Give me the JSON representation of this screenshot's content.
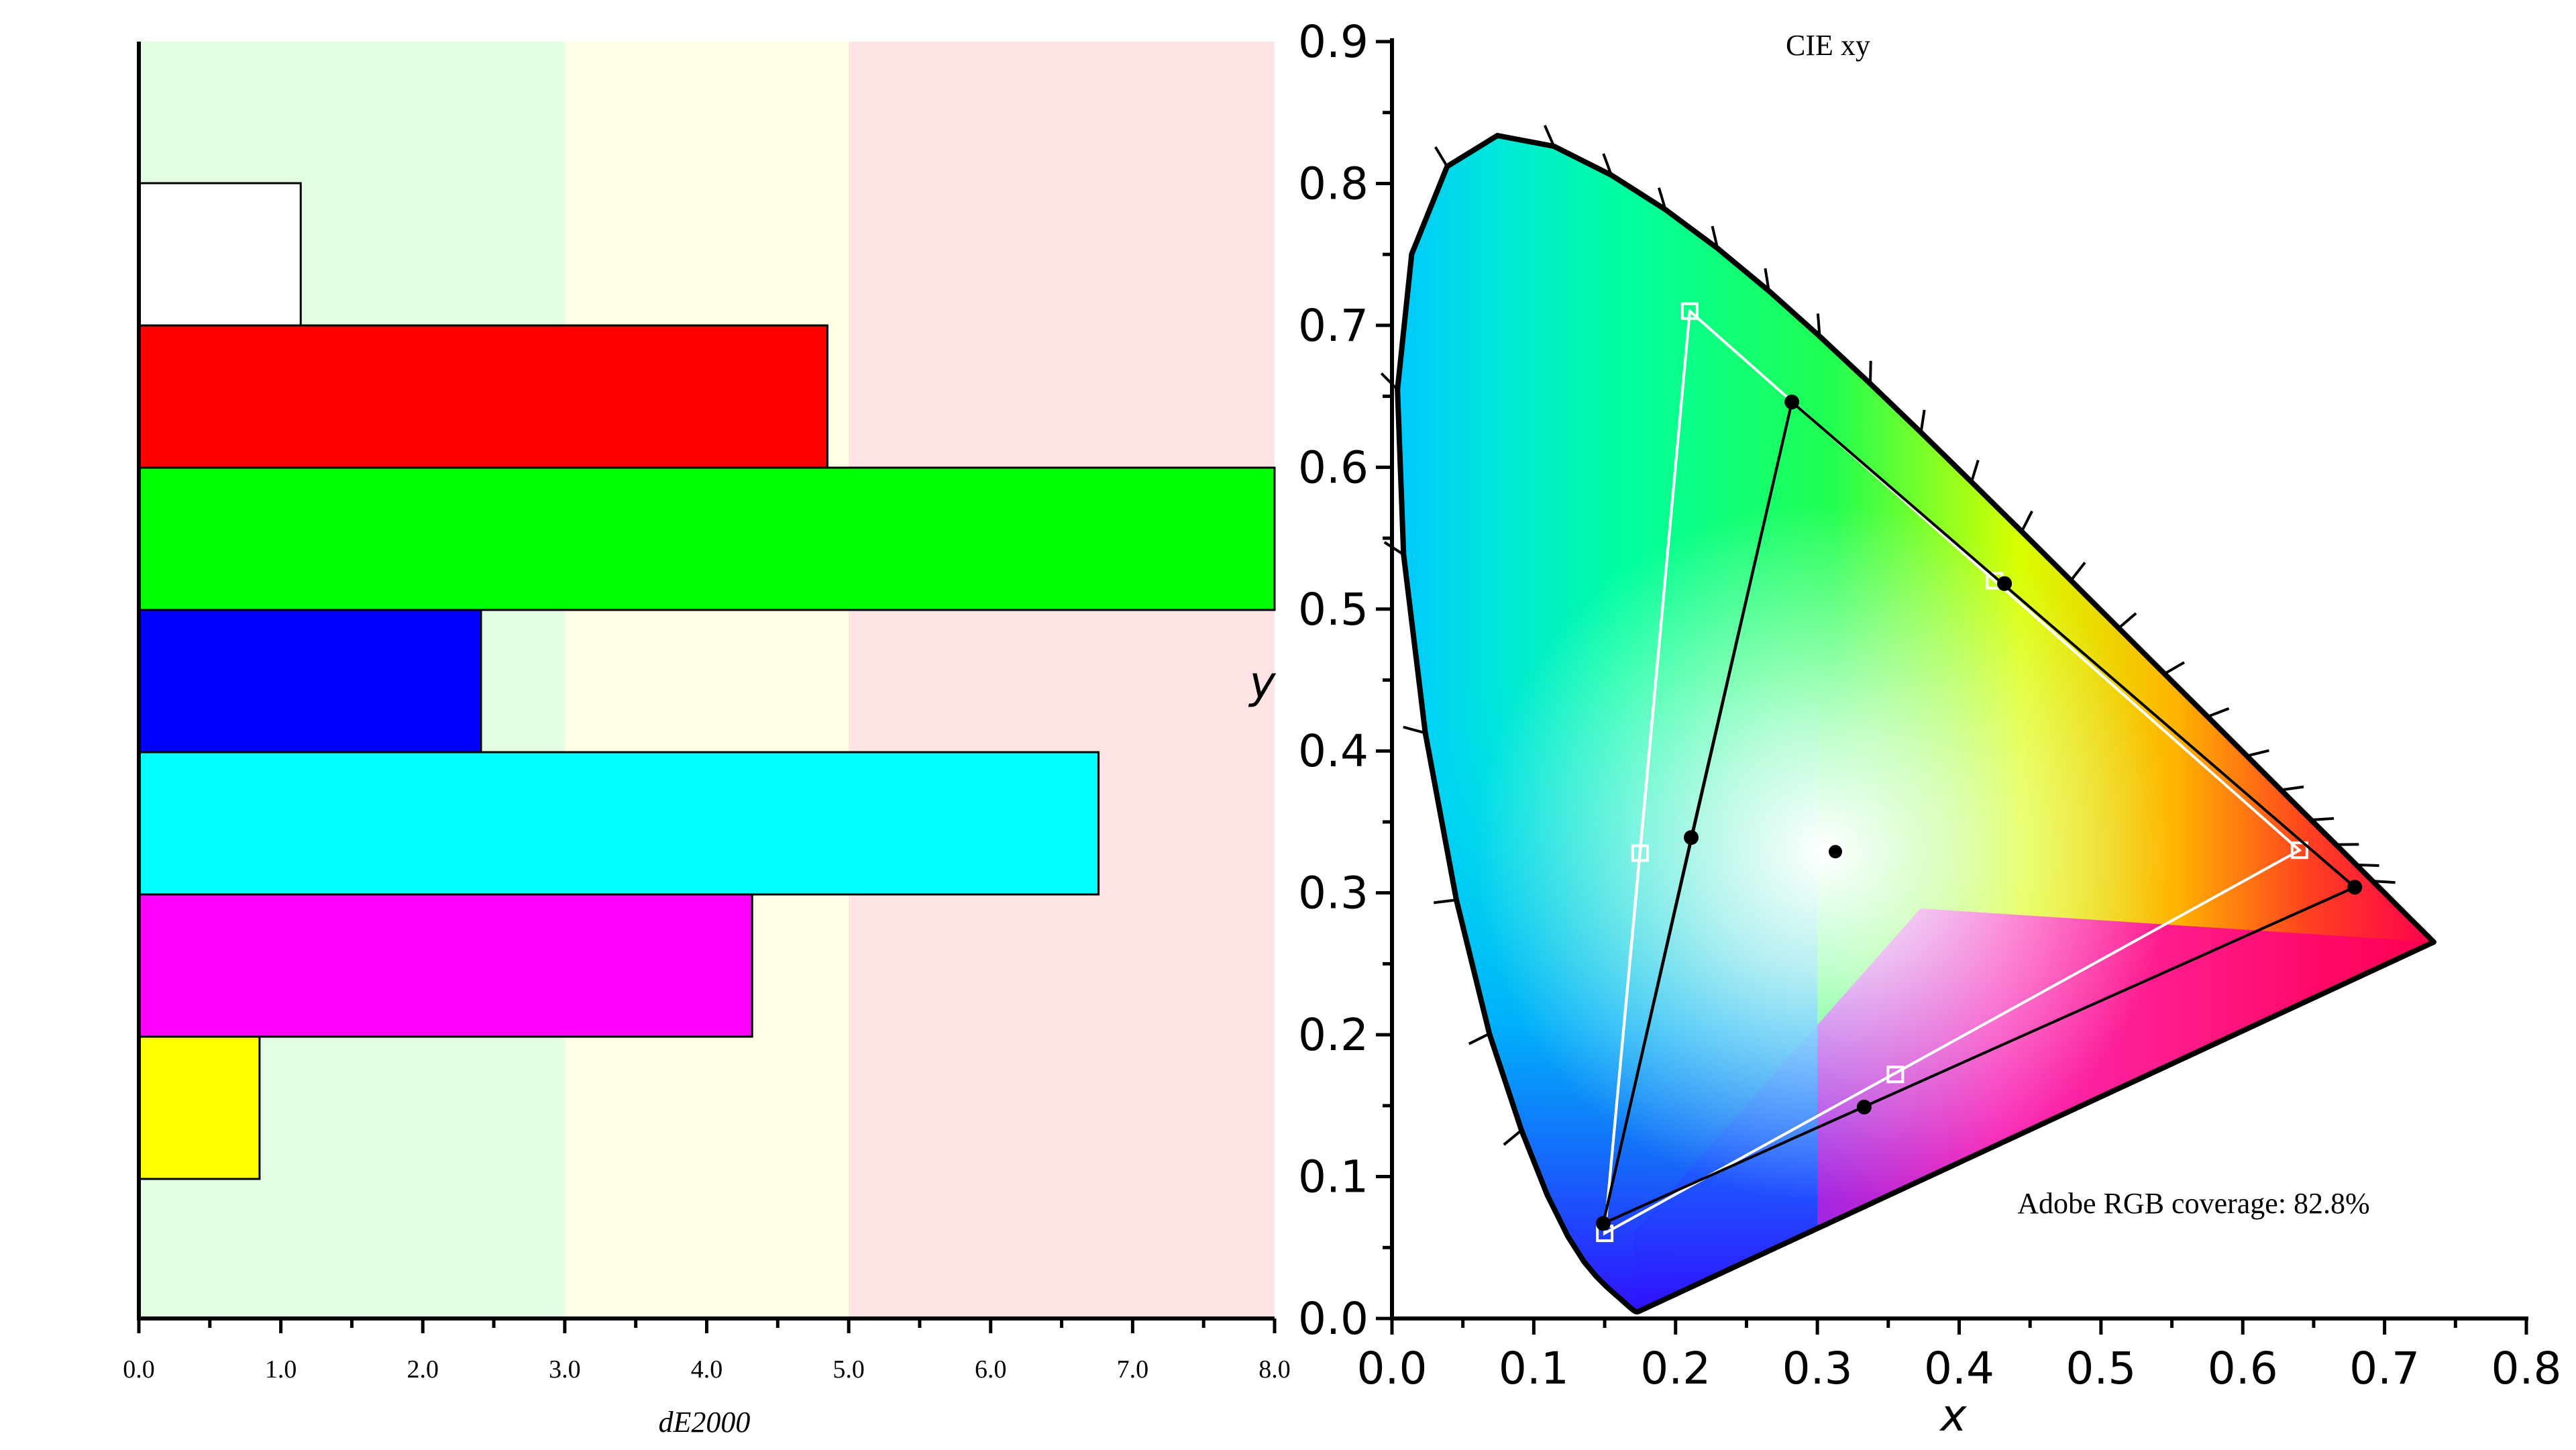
{
  "chart_data": [
    {
      "type": "bar",
      "orientation": "horizontal",
      "categories": [
        "White",
        "Red",
        "Green",
        "Blue",
        "Cyan",
        "Magenta",
        "Yellow"
      ],
      "values": [
        1.14,
        4.85,
        8.0,
        2.41,
        6.76,
        4.32,
        0.85
      ],
      "bar_colors": [
        "#ffffff",
        "#ff0000",
        "#00ff00",
        "#0000ff",
        "#00ffff",
        "#ff00ff",
        "#ffff00"
      ],
      "xlabel": "dE2000",
      "xlim": [
        0,
        8
      ],
      "x_ticks": [
        0,
        1,
        2,
        3,
        4,
        5,
        6,
        7,
        8
      ],
      "x_tick_labels": [
        "0.0",
        "1.0",
        "2.0",
        "3.0",
        "4.0",
        "5.0",
        "6.0",
        "7.0",
        "8.0"
      ],
      "zones": [
        {
          "from": 0,
          "to": 3,
          "color": "#e3fde3"
        },
        {
          "from": 3,
          "to": 5,
          "color": "#fdfee3"
        },
        {
          "from": 5,
          "to": 8,
          "color": "#fde3e3"
        }
      ]
    },
    {
      "type": "scatter",
      "subtype": "cie-xy-chromaticity",
      "title": "CIE xy",
      "xlabel": "x",
      "ylabel": "y",
      "xlim": [
        0,
        0.8
      ],
      "ylim": [
        0,
        0.9
      ],
      "x_ticks": [
        0.0,
        0.1,
        0.2,
        0.3,
        0.4,
        0.5,
        0.6,
        0.7,
        0.8
      ],
      "x_tick_labels": [
        "0.0",
        "0.1",
        "0.2",
        "0.3",
        "0.4",
        "0.5",
        "0.6",
        "0.7",
        "0.8"
      ],
      "y_ticks": [
        0.0,
        0.1,
        0.2,
        0.3,
        0.4,
        0.5,
        0.6,
        0.7,
        0.8,
        0.9
      ],
      "y_tick_labels": [
        "0.0",
        "0.1",
        "0.2",
        "0.3",
        "0.4",
        "0.5",
        "0.6",
        "0.7",
        "0.8",
        "0.9"
      ],
      "annotation": "Adobe RGB coverage: 82.8%",
      "white_point": {
        "x": 0.3127,
        "y": 0.329
      },
      "reference_gamut": {
        "line_color": "#ffffff",
        "points": [
          {
            "x": 0.64,
            "y": 0.33
          },
          {
            "x": 0.21,
            "y": 0.71
          },
          {
            "x": 0.15,
            "y": 0.06
          },
          {
            "x": 0.425,
            "y": 0.52
          },
          {
            "x": 0.175,
            "y": 0.328
          },
          {
            "x": 0.355,
            "y": 0.172
          }
        ]
      },
      "measured_gamut": {
        "line_color": "#000000",
        "points": [
          {
            "x": 0.679,
            "y": 0.304
          },
          {
            "x": 0.282,
            "y": 0.646
          },
          {
            "x": 0.149,
            "y": 0.067
          },
          {
            "x": 0.432,
            "y": 0.518
          },
          {
            "x": 0.211,
            "y": 0.339
          },
          {
            "x": 0.333,
            "y": 0.149
          }
        ]
      }
    }
  ]
}
